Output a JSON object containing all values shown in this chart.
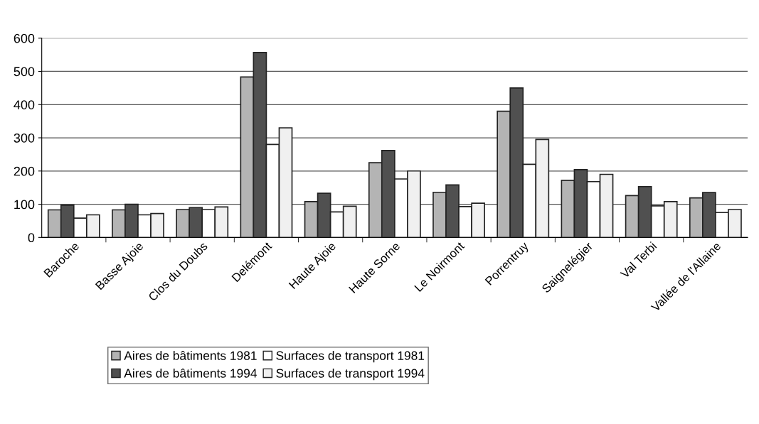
{
  "chart_data": {
    "type": "bar",
    "categories": [
      "Baroche",
      "Basse Ajoie",
      "Clos du Doubs",
      "Delémont",
      "Haute Ajoie",
      "Haute Sorne",
      "Le Noirmont",
      "Porrentruy",
      "Saignelégier",
      "Val Terbi",
      "Vallée de l'Allaine"
    ],
    "series": [
      {
        "name": "Aires de bâtiments 1981",
        "color": "#b4b4b4",
        "values": [
          83,
          83,
          84,
          483,
          108,
          225,
          136,
          380,
          172,
          126,
          119
        ]
      },
      {
        "name": "Aires de bâtiments 1994",
        "color": "#505050",
        "values": [
          97,
          100,
          90,
          557,
          133,
          262,
          158,
          450,
          204,
          153,
          135
        ]
      },
      {
        "name": "Surfaces de transport 1981",
        "color": "#ffffff",
        "values": [
          58,
          68,
          84,
          280,
          77,
          176,
          93,
          220,
          168,
          95,
          75
        ]
      },
      {
        "name": "Surfaces de transport 1994",
        "color": "#f0f0f0",
        "values": [
          68,
          72,
          92,
          330,
          94,
          200,
          103,
          295,
          190,
          108,
          84
        ]
      }
    ],
    "ylim": [
      0,
      600
    ],
    "yticks": [
      0,
      100,
      200,
      300,
      400,
      500,
      600
    ],
    "grid": "y",
    "legend": "bottom left"
  }
}
